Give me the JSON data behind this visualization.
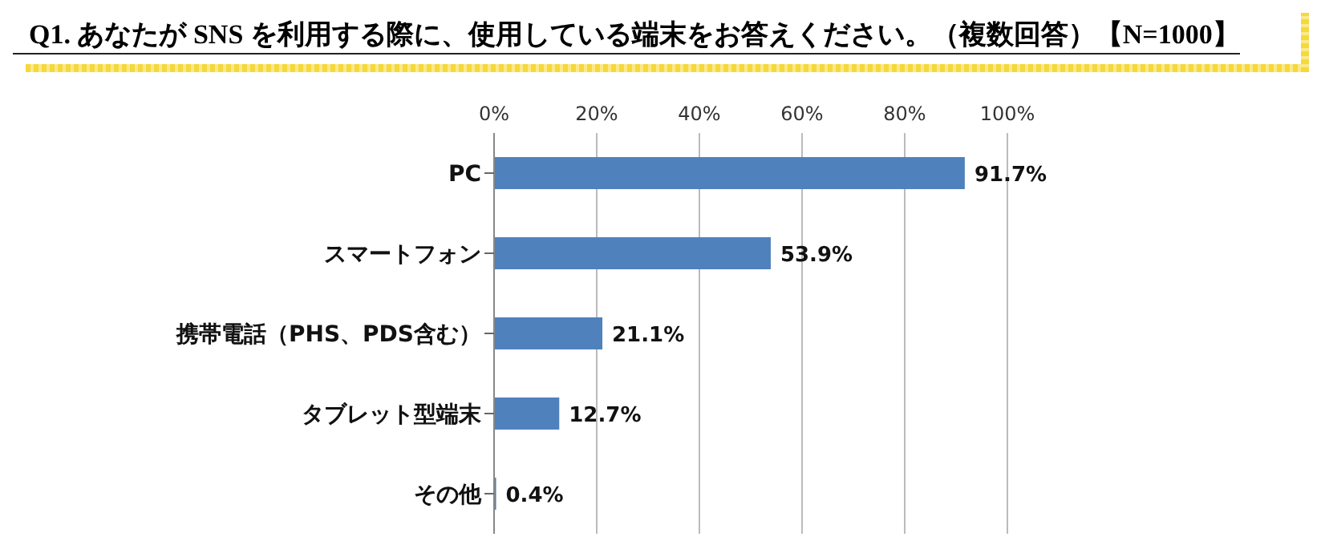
{
  "chart_data": {
    "type": "bar",
    "orientation": "horizontal",
    "title": "Q1. あなたが SNS を利用する際に、使用している端末をお答えください。（複数回答）【N=1000】",
    "categories": [
      "PC",
      "スマートフォン",
      "携帯電話（PHS、PDS含む）",
      "タブレット型端末",
      "その他"
    ],
    "values": [
      91.7,
      53.9,
      21.1,
      12.7,
      0.4
    ],
    "value_labels": [
      "91.7%",
      "53.9%",
      "21.1%",
      "12.7%",
      "0.4%"
    ],
    "color": "#4f81bd",
    "xlim": [
      0,
      100
    ],
    "xticks": [
      {
        "value": 0,
        "label": "0%"
      },
      {
        "value": 20,
        "label": "20%"
      },
      {
        "value": 40,
        "label": "40%"
      },
      {
        "value": 60,
        "label": "60%"
      },
      {
        "value": 80,
        "label": "80%"
      },
      {
        "value": 100,
        "label": "100%"
      }
    ],
    "grid": "x"
  }
}
